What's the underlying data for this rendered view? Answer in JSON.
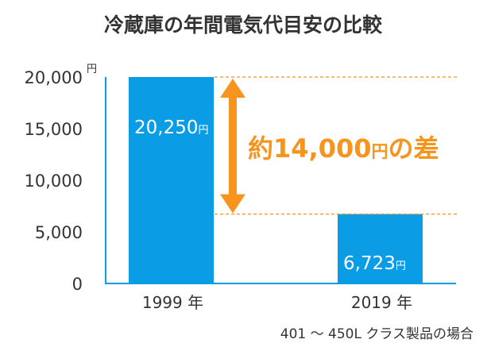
{
  "chart_data": {
    "type": "bar",
    "title": "冷蔵庫の年間電気代目安の比較",
    "categories": [
      "1999 年",
      "2019 年"
    ],
    "values": [
      20250,
      6723
    ],
    "value_labels": [
      "20,250",
      "6,723"
    ],
    "value_unit": "円",
    "yunit": "円",
    "ylim": [
      0,
      20000
    ],
    "yticks": [
      0,
      5000,
      10000,
      15000,
      20000
    ],
    "ytick_labels": [
      "0",
      "5,000",
      "10,000",
      "15,000",
      "20,000"
    ],
    "xlabel": "",
    "ylabel": "",
    "grid": false,
    "annotation": {
      "difference_number": "約14,000",
      "difference_unit": "円",
      "difference_suffix": "の差"
    },
    "note": "401 ～ 450L クラス製品の場合"
  },
  "colors": {
    "bar": "#0a9ce5",
    "accent": "#f7941d",
    "axis": "#0a9ce5",
    "text": "#333333"
  }
}
